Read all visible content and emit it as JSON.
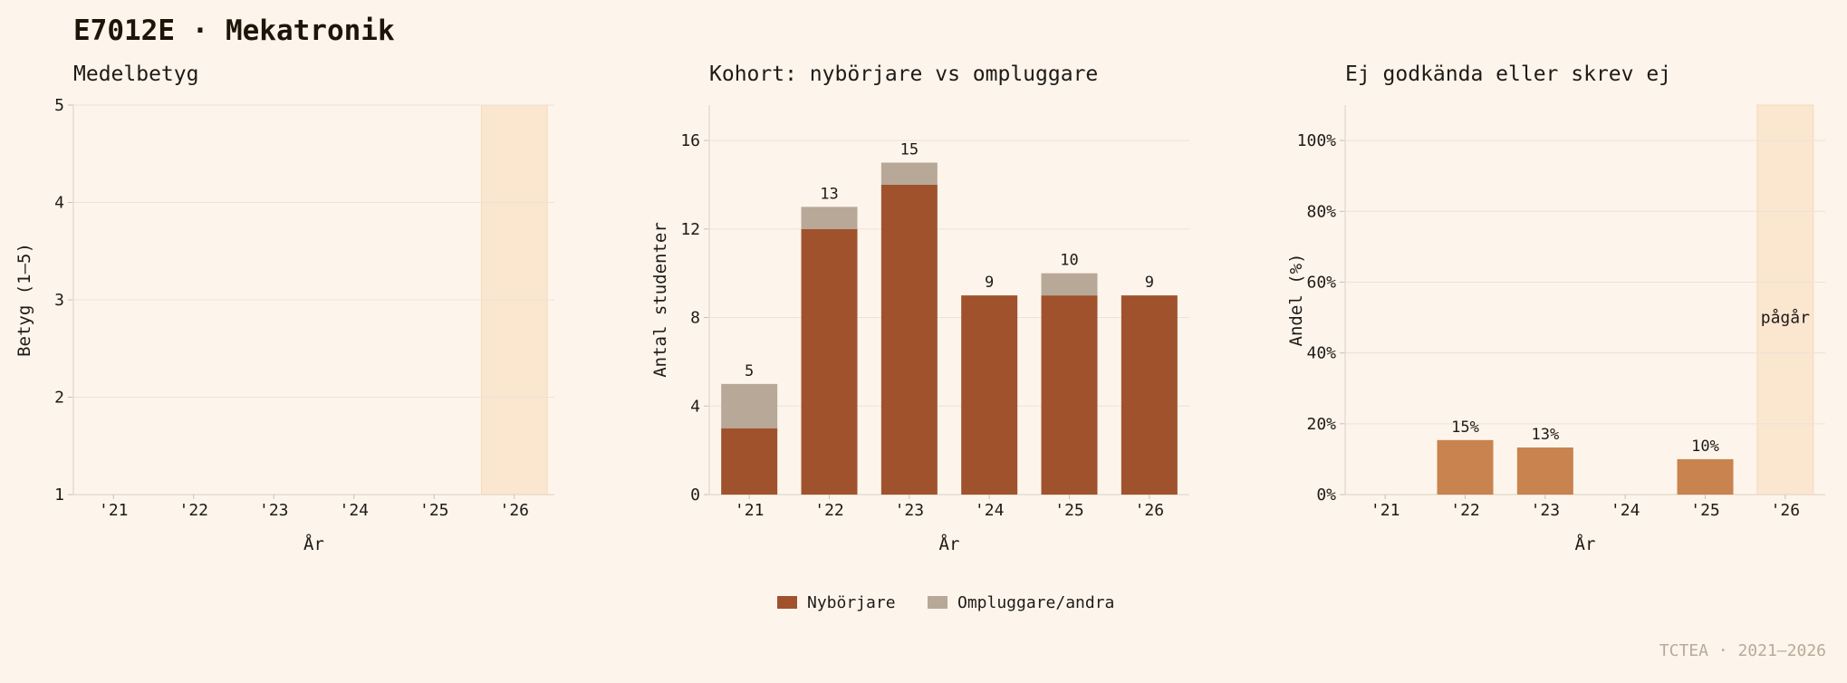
{
  "page": {
    "title": "E7012E · Mekatronik",
    "footer": "TCTEA · 2021–2026"
  },
  "colors": {
    "background": "#fdf5eb",
    "nybörjare": "#a0522d",
    "ompluggare": "#b8a898",
    "fail_bar": "#c8834e",
    "ongoing_band": "#fbe6d0",
    "grid": "#ece2d6",
    "axis": "#e6dccf"
  },
  "legend": {
    "items": [
      {
        "label": "Nybörjare",
        "color_key": "nybörjare"
      },
      {
        "label": "Ompluggare/andra",
        "color_key": "ompluggare"
      }
    ]
  },
  "chart_data": [
    {
      "id": "grade",
      "type": "line",
      "title": "Medelbetyg",
      "xlabel": "År",
      "ylabel": "Betyg (1–5)",
      "categories": [
        "'21",
        "'22",
        "'23",
        "'24",
        "'25",
        "'26"
      ],
      "ylim": [
        1,
        5
      ],
      "yticks": [
        1,
        2,
        3,
        4,
        5
      ],
      "series": [],
      "ongoing_index": 5,
      "grid": true
    },
    {
      "id": "cohort",
      "type": "bar",
      "stacked": true,
      "title": "Kohort: nybörjare vs ompluggare",
      "xlabel": "År",
      "ylabel": "Antal studenter",
      "categories": [
        "'21",
        "'22",
        "'23",
        "'24",
        "'25",
        "'26"
      ],
      "ylim": [
        0,
        17.6
      ],
      "yticks": [
        0,
        4,
        8,
        12,
        16
      ],
      "series": [
        {
          "name": "Nybörjare",
          "values": [
            3,
            12,
            14,
            9,
            9,
            9
          ]
        },
        {
          "name": "Ompluggare/andra",
          "values": [
            2,
            1,
            1,
            0,
            1,
            0
          ]
        }
      ],
      "totals": [
        "5",
        "13",
        "15",
        "9",
        "10",
        "9"
      ],
      "legend_position": "bottom-center",
      "grid": true
    },
    {
      "id": "fail",
      "type": "bar",
      "title": "Ej godkända eller skrev ej",
      "xlabel": "År",
      "ylabel": "Andel (%)",
      "categories": [
        "'21",
        "'22",
        "'23",
        "'24",
        "'25",
        "'26"
      ],
      "ylim": [
        0,
        1.1
      ],
      "yticks": [
        0,
        0.2,
        0.4,
        0.6,
        0.8,
        1.0
      ],
      "ytick_labels": [
        "0%",
        "20%",
        "40%",
        "60%",
        "80%",
        "100%"
      ],
      "values": [
        0,
        0.154,
        0.133,
        0,
        0.1,
        null
      ],
      "value_labels": [
        "",
        "15%",
        "13%",
        "",
        "10%",
        ""
      ],
      "ongoing_index": 5,
      "ongoing_label": "pågår",
      "grid": true
    }
  ]
}
